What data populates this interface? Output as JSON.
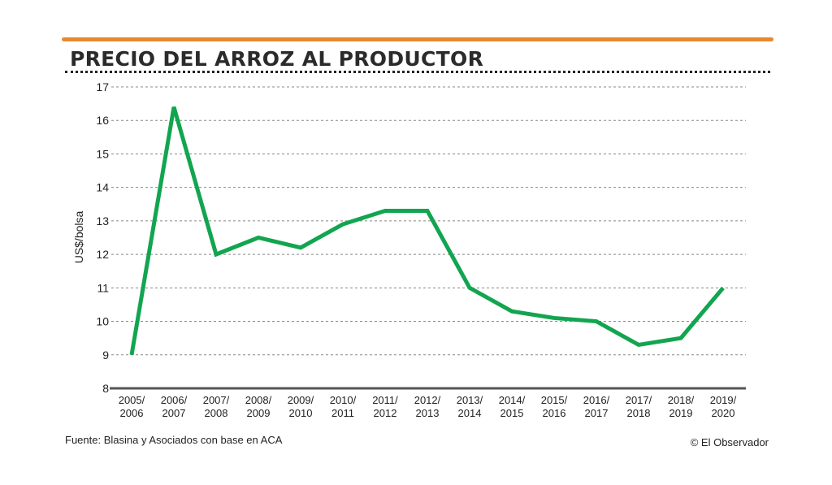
{
  "chart_data": {
    "type": "line",
    "title": "PRECIO DEL ARROZ AL PRODUCTOR",
    "ylabel": "US$/bolsa",
    "xlabel": "",
    "ylim": [
      8,
      17
    ],
    "yticks": [
      8,
      9,
      10,
      11,
      12,
      13,
      14,
      15,
      16,
      17
    ],
    "grid": true,
    "categories": [
      [
        "2005/",
        "2006"
      ],
      [
        "2006/",
        "2007"
      ],
      [
        "2007/",
        "2008"
      ],
      [
        "2008/",
        "2009"
      ],
      [
        "2009/",
        "2010"
      ],
      [
        "2010/",
        "2011"
      ],
      [
        "2011/",
        "2012"
      ],
      [
        "2012/",
        "2013"
      ],
      [
        "2013/",
        "2014"
      ],
      [
        "2014/",
        "2015"
      ],
      [
        "2015/",
        "2016"
      ],
      [
        "2016/",
        "2017"
      ],
      [
        "2017/",
        "2018"
      ],
      [
        "2018/",
        "2019"
      ],
      [
        "2019/",
        "2020"
      ]
    ],
    "series": [
      {
        "name": "Precio",
        "color": "#12a550",
        "values": [
          9.0,
          16.4,
          12.0,
          12.5,
          12.2,
          12.9,
          13.3,
          13.3,
          11.0,
          10.3,
          10.1,
          10.0,
          9.3,
          9.5,
          11.0
        ]
      }
    ]
  },
  "source": "Fuente: Blasina y Asociados con base en ACA",
  "credit": "© El Observador"
}
